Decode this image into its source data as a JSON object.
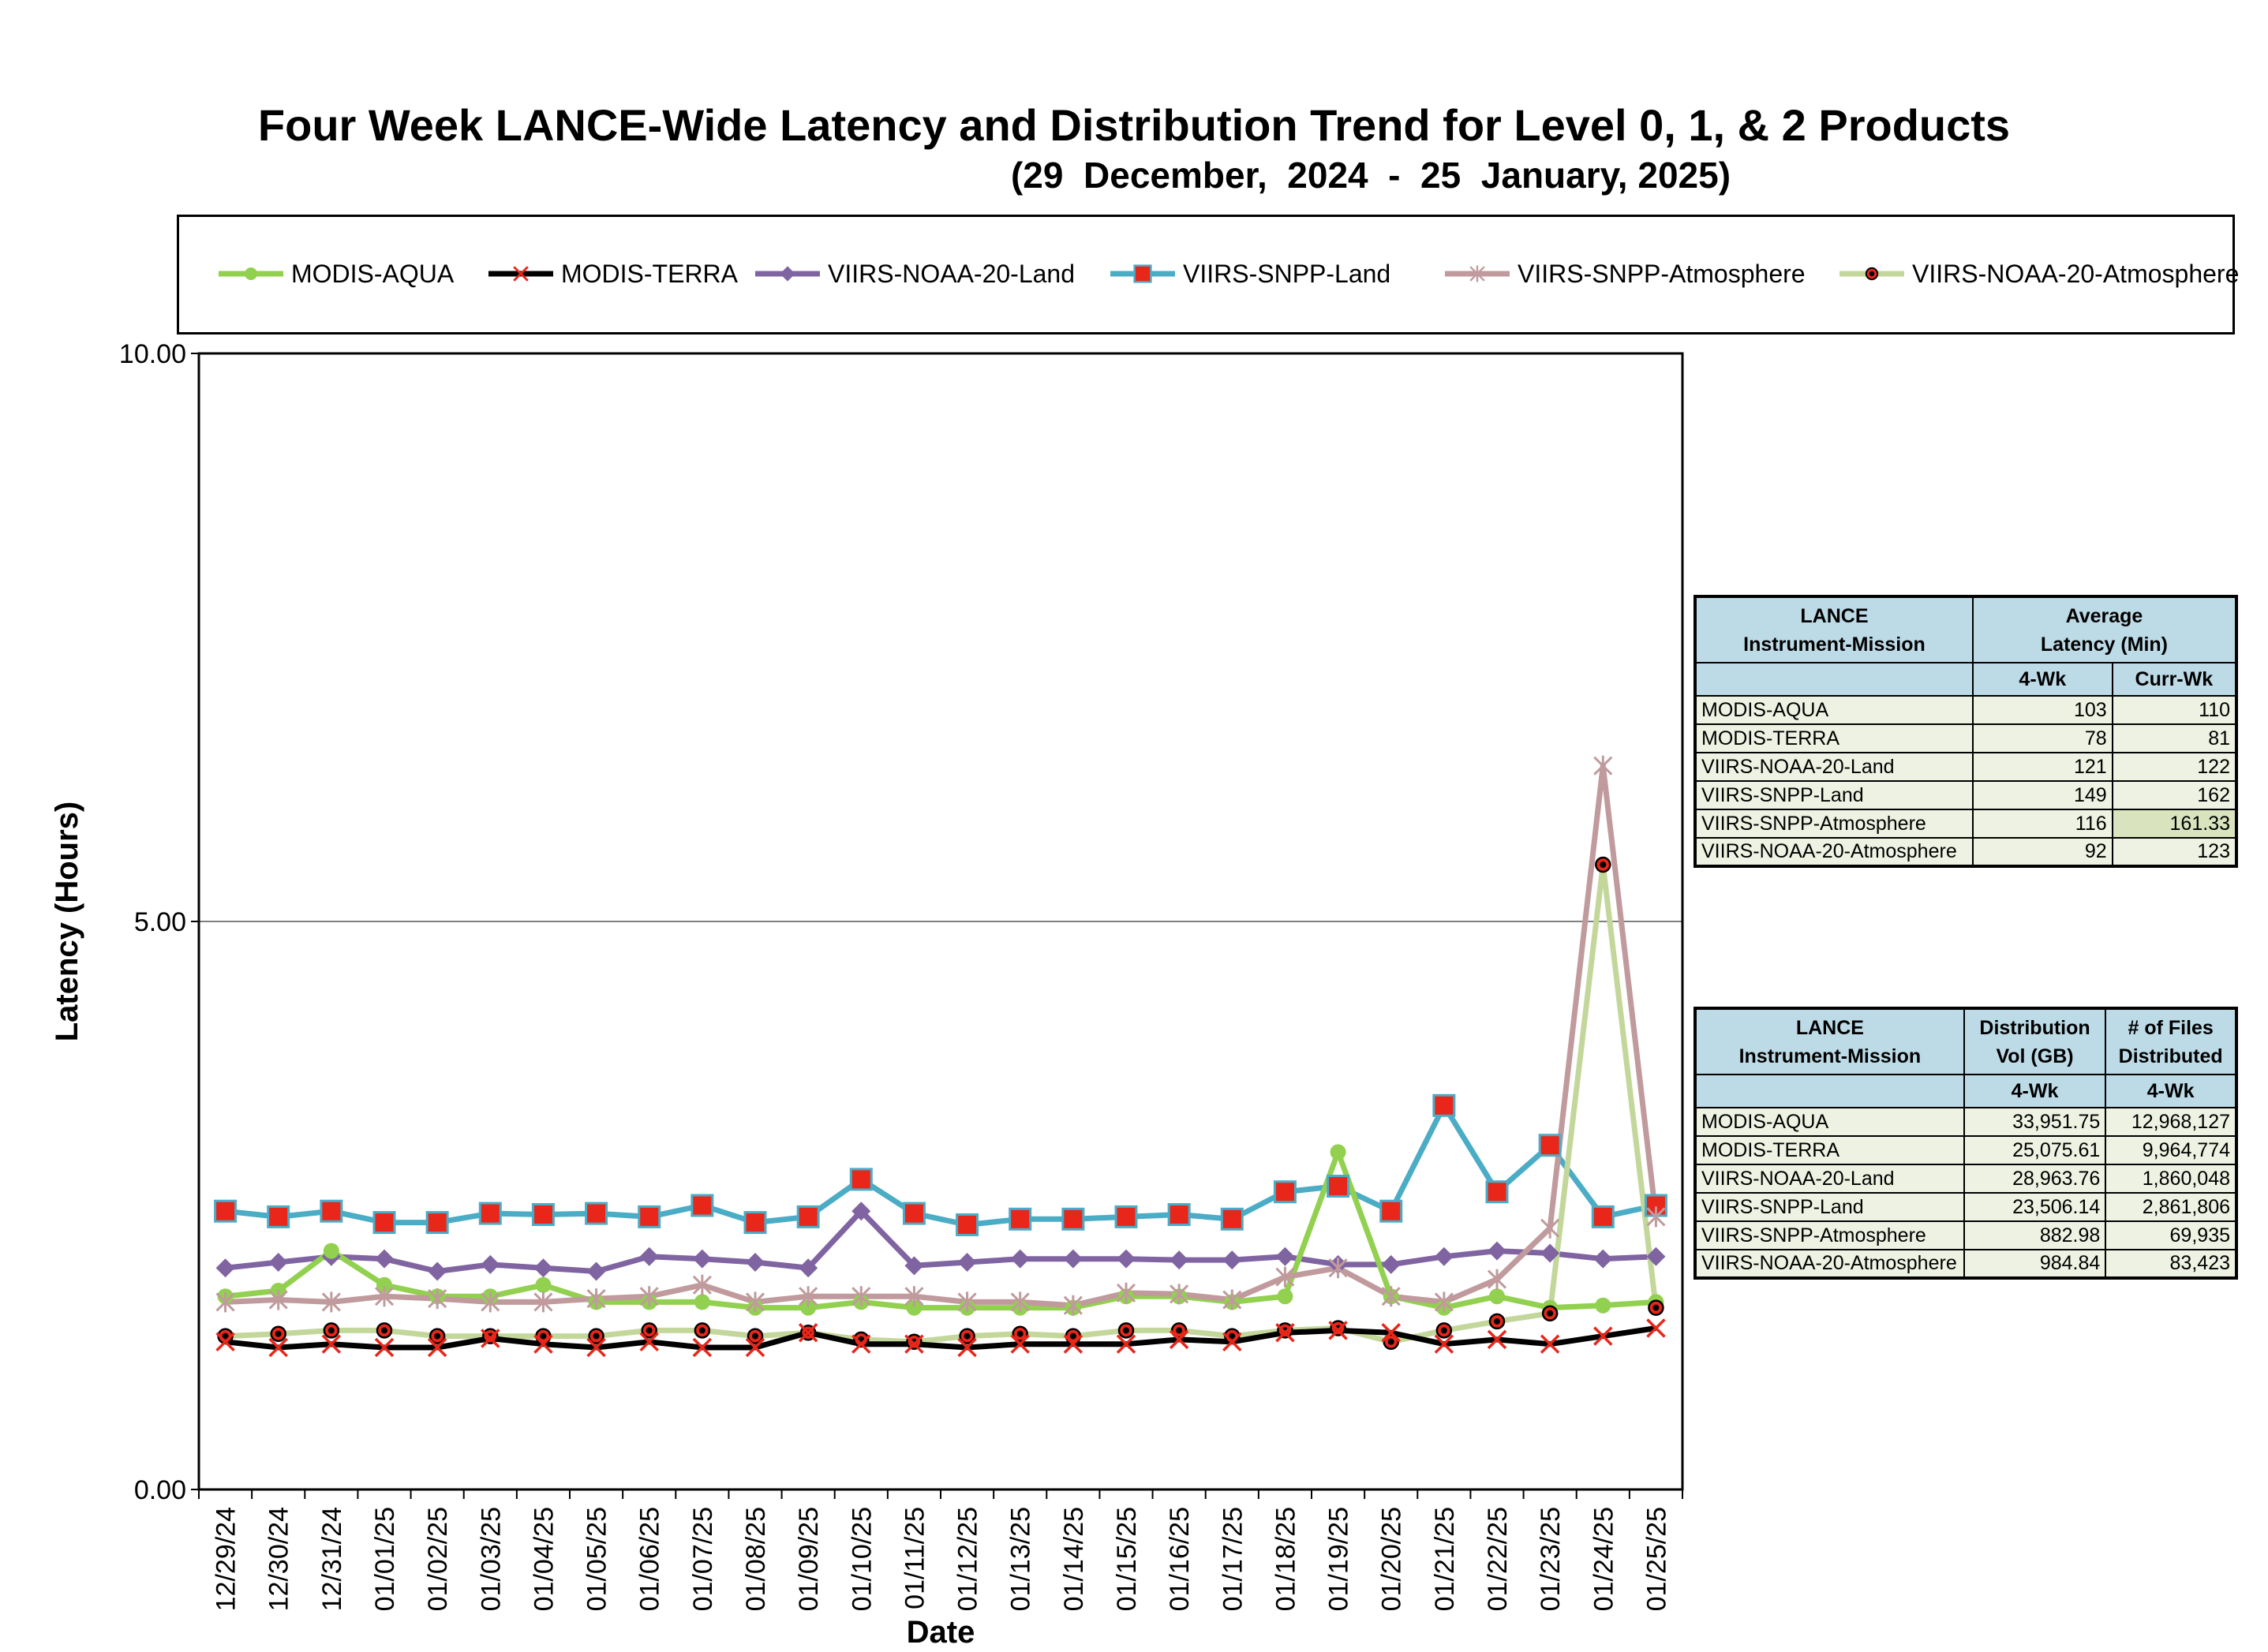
{
  "title": "Four Week LANCE-Wide Latency and Distribution Trend for Level 0, 1, & 2 Products",
  "subtitle": "(29  December,  2024  -  25  January, 2025)",
  "chart_data": {
    "type": "line",
    "xlabel": "Date",
    "ylabel": "Latency (Hours)",
    "ylim": [
      0,
      10
    ],
    "yticks": [
      "0.00",
      "5.00",
      "10.00"
    ],
    "grid": "horizontal at 5.00",
    "legend_position": "top",
    "categories": [
      "12/29/24",
      "12/30/24",
      "12/31/24",
      "01/01/25",
      "01/02/25",
      "01/03/25",
      "01/04/25",
      "01/05/25",
      "01/06/25",
      "01/07/25",
      "01/08/25",
      "01/09/25",
      "01/10/25",
      "01/11/25",
      "01/12/25",
      "01/13/25",
      "01/14/25",
      "01/15/25",
      "01/16/25",
      "01/17/25",
      "01/18/25",
      "01/19/25",
      "01/20/25",
      "01/21/25",
      "01/22/25",
      "01/23/25",
      "01/24/25",
      "01/25/25"
    ],
    "series": [
      {
        "name": "MODIS-AQUA",
        "color": "#92d050",
        "marker": "circle",
        "values": [
          1.7,
          1.75,
          2.1,
          1.8,
          1.7,
          1.7,
          1.8,
          1.65,
          1.65,
          1.65,
          1.6,
          1.6,
          1.65,
          1.6,
          1.6,
          1.6,
          1.6,
          1.7,
          1.7,
          1.65,
          1.7,
          2.97,
          1.7,
          1.6,
          1.7,
          1.6,
          1.62,
          1.65
        ]
      },
      {
        "name": "MODIS-TERRA",
        "color": "#000000",
        "marker": "x",
        "values": [
          1.3,
          1.25,
          1.28,
          1.25,
          1.25,
          1.33,
          1.28,
          1.25,
          1.3,
          1.25,
          1.25,
          1.38,
          1.28,
          1.28,
          1.25,
          1.28,
          1.28,
          1.28,
          1.32,
          1.3,
          1.38,
          1.4,
          1.38,
          1.28,
          1.32,
          1.28,
          1.35,
          1.42
        ]
      },
      {
        "name": "VIIRS-NOAA-20-Land",
        "color": "#8064a2",
        "marker": "diamond",
        "values": [
          1.95,
          2.0,
          2.05,
          2.03,
          1.92,
          1.98,
          1.95,
          1.92,
          2.05,
          2.03,
          2.0,
          1.95,
          2.45,
          1.97,
          2.0,
          2.03,
          2.03,
          2.03,
          2.02,
          2.02,
          2.05,
          1.98,
          1.98,
          2.05,
          2.1,
          2.08,
          2.03,
          2.05
        ]
      },
      {
        "name": "VIIRS-SNPP-Land",
        "color": "#4bacc6",
        "marker": "square",
        "values": [
          2.45,
          2.4,
          2.45,
          2.35,
          2.35,
          2.43,
          2.42,
          2.43,
          2.4,
          2.5,
          2.35,
          2.4,
          2.73,
          2.43,
          2.33,
          2.38,
          2.38,
          2.4,
          2.42,
          2.38,
          2.62,
          2.67,
          2.45,
          3.38,
          2.62,
          3.03,
          2.4,
          2.5
        ]
      },
      {
        "name": "VIIRS-SNPP-Atmosphere",
        "color": "#c09a9c",
        "marker": "star",
        "values": [
          1.65,
          1.67,
          1.65,
          1.7,
          1.68,
          1.65,
          1.65,
          1.68,
          1.7,
          1.8,
          1.65,
          1.7,
          1.7,
          1.7,
          1.65,
          1.65,
          1.62,
          1.73,
          1.72,
          1.67,
          1.87,
          1.95,
          1.7,
          1.65,
          1.85,
          2.3,
          6.37,
          2.4
        ]
      },
      {
        "name": "VIIRS-NOAA-20-Atmosphere",
        "color": "#c4d79b",
        "marker": "dot",
        "values": [
          1.35,
          1.37,
          1.4,
          1.4,
          1.35,
          1.35,
          1.35,
          1.35,
          1.4,
          1.4,
          1.35,
          1.38,
          1.32,
          1.3,
          1.35,
          1.37,
          1.35,
          1.4,
          1.4,
          1.35,
          1.4,
          1.42,
          1.3,
          1.4,
          1.48,
          1.55,
          5.5,
          1.6
        ]
      }
    ]
  },
  "latency_table": {
    "header_col1": "LANCE\nInstrument-Mission",
    "header_group": "Average\nLatency (Min)",
    "sub_4wk": "4-Wk",
    "sub_curr": "Curr-Wk",
    "rows": [
      {
        "name": "MODIS-AQUA",
        "wk4": "103",
        "curr": "110"
      },
      {
        "name": "MODIS-TERRA",
        "wk4": "78",
        "curr": "81"
      },
      {
        "name": "VIIRS-NOAA-20-Land",
        "wk4": "121",
        "curr": "122"
      },
      {
        "name": "VIIRS-SNPP-Land",
        "wk4": "149",
        "curr": "162"
      },
      {
        "name": "VIIRS-SNPP-Atmosphere",
        "wk4": "116",
        "curr": "161.33"
      },
      {
        "name": "VIIRS-NOAA-20-Atmosphere",
        "wk4": "92",
        "curr": "123"
      }
    ]
  },
  "distribution_table": {
    "header_col1": "LANCE\nInstrument-Mission",
    "header_vol": "Distribution\nVol (GB)",
    "header_files": "# of Files\nDistributed",
    "sub_vol": "4-Wk",
    "sub_files": "4-Wk",
    "rows": [
      {
        "name": "MODIS-AQUA",
        "vol": "33,951.75",
        "files": "12,968,127"
      },
      {
        "name": "MODIS-TERRA",
        "vol": "25,075.61",
        "files": "9,964,774"
      },
      {
        "name": "VIIRS-NOAA-20-Land",
        "vol": "28,963.76",
        "files": "1,860,048"
      },
      {
        "name": "VIIRS-SNPP-Land",
        "vol": "23,506.14",
        "files": "2,861,806"
      },
      {
        "name": "VIIRS-SNPP-Atmosphere",
        "vol": "882.98",
        "files": "69,935"
      },
      {
        "name": "VIIRS-NOAA-20-Atmosphere",
        "vol": "984.84",
        "files": "83,423"
      }
    ]
  }
}
